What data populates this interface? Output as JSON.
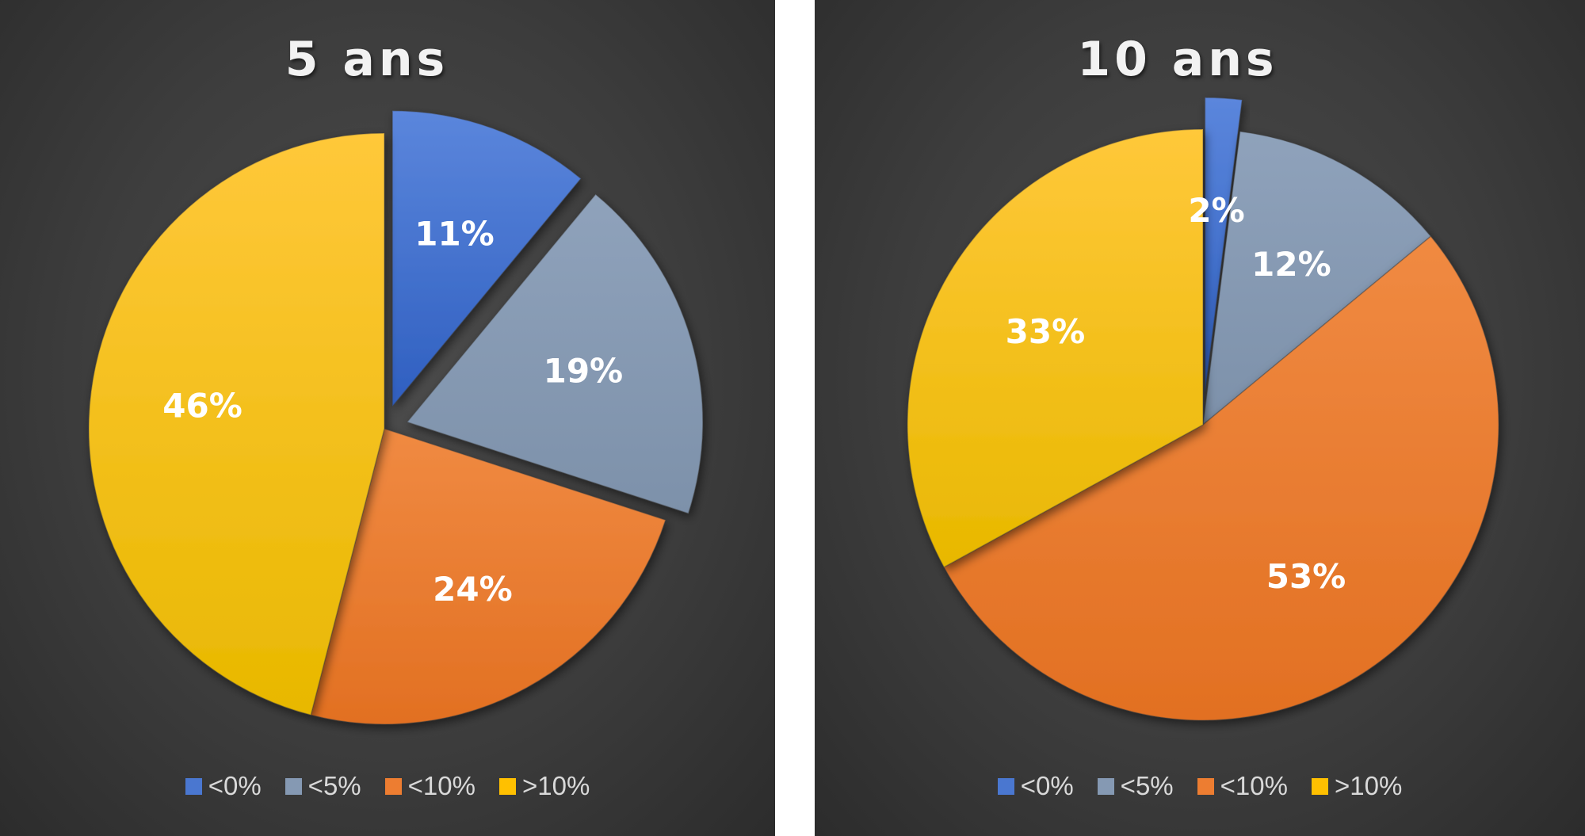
{
  "colors": {
    "<0%": "#4a77d0",
    "<5%": "#8599b3",
    "<10%": "#ed7d31",
    ">10%": "#ffc000"
  },
  "chart_data": [
    {
      "type": "pie",
      "title": "5 ans",
      "categories": [
        "<0%",
        "<5%",
        "<10%",
        ">10%"
      ],
      "values": [
        11,
        19,
        24,
        46
      ],
      "labels": [
        "11%",
        "19%",
        "24%",
        "46%"
      ],
      "exploded": [
        "<0%",
        "<5%"
      ],
      "legend_position": "bottom"
    },
    {
      "type": "pie",
      "title": "10 ans",
      "categories": [
        "<0%",
        "<5%",
        "<10%",
        ">10%"
      ],
      "values": [
        2,
        12,
        53,
        33
      ],
      "labels": [
        "2%",
        "12%",
        "53%",
        "33%"
      ],
      "exploded": [
        "<0%"
      ],
      "legend_position": "bottom"
    }
  ]
}
